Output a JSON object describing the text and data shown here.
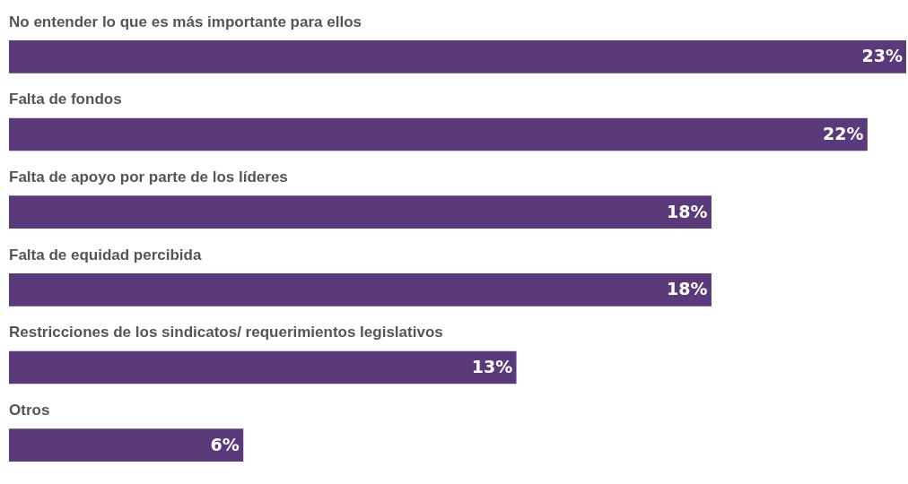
{
  "chart_data": {
    "type": "bar",
    "orientation": "horizontal",
    "categories": [
      "No entender lo que es más importante para ellos",
      "Falta de fondos",
      "Falta de apoyo por parte de los líderes",
      "Falta de equidad percibida",
      "Restricciones de los sindicatos/ requerimientos legislativos",
      "Otros"
    ],
    "values": [
      23,
      22,
      18,
      18,
      13,
      6
    ],
    "value_labels": [
      "23%",
      "22%",
      "18%",
      "18%",
      "13%",
      "6%"
    ],
    "color": "#5b3a7c"
  }
}
